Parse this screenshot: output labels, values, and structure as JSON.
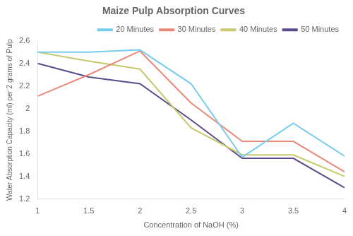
{
  "chart_data": {
    "type": "line",
    "title": "Maize Pulp Absorption Curves",
    "xlabel": "Concentration of NaOH (%)",
    "ylabel": "Water Absorption Capacity (ml) per 2 grams of Pulp",
    "x": [
      1,
      1.5,
      2,
      2.5,
      3,
      3.5,
      4
    ],
    "series": [
      {
        "name": "20 Minutes",
        "color": "#77CCEE",
        "values": [
          2.5,
          2.5,
          2.52,
          2.22,
          1.57,
          1.87,
          1.58
        ]
      },
      {
        "name": "30 Minutes",
        "color": "#E8897A",
        "values": [
          2.11,
          2.3,
          2.51,
          2.05,
          1.71,
          1.71,
          1.44
        ]
      },
      {
        "name": "40 Minutes",
        "color": "#C8C870",
        "values": [
          2.5,
          2.42,
          2.35,
          1.83,
          1.59,
          1.59,
          1.4
        ]
      },
      {
        "name": "50 Minutes",
        "color": "#5B4A8A",
        "values": [
          2.4,
          2.28,
          2.22,
          1.9,
          1.56,
          1.56,
          1.3
        ]
      }
    ],
    "xlim": [
      1,
      4
    ],
    "ylim": [
      1.2,
      2.6
    ],
    "xticks": [
      1,
      1.5,
      2,
      2.5,
      3,
      3.5,
      4
    ],
    "yticks": [
      1.2,
      1.4,
      1.6,
      1.8,
      2.0,
      2.2,
      2.4,
      2.6
    ],
    "grid": false,
    "legend": "upper right"
  }
}
